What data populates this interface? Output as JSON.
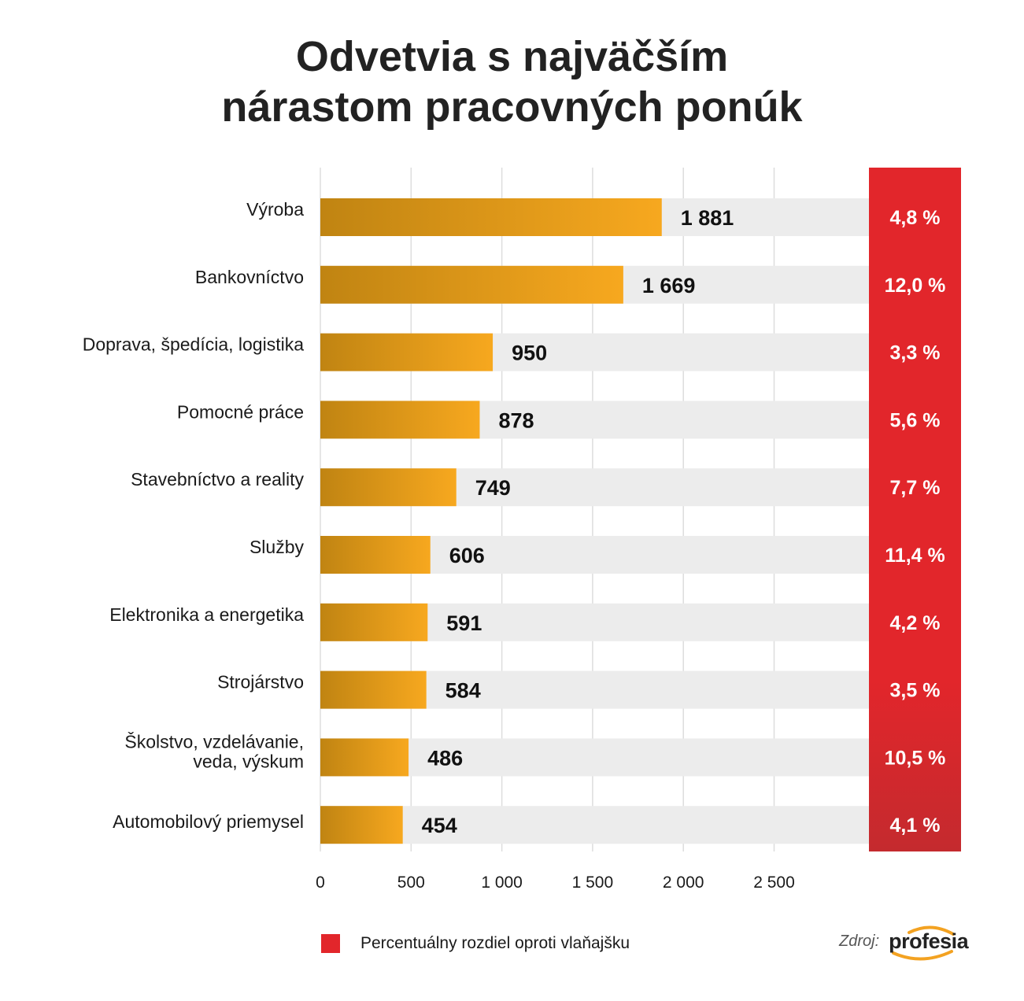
{
  "title_line1": "Odvetvia s najväčším",
  "title_line2": "nárastom pracovných ponúk",
  "chart_data": {
    "type": "bar",
    "orientation": "horizontal",
    "title": "Odvetvia s najväčším nárastom pracovných ponúk",
    "categories": [
      "Výroba",
      "Bankovníctvo",
      "Doprava, špedícia, logistika",
      "Pomocné práce",
      "Stavebníctvo a reality",
      "Služby",
      "Elektronika a energetika",
      "Strojárstvo",
      "Školstvo, vzdelávanie, veda, výskum",
      "Automobilový priemysel"
    ],
    "category_lines": [
      [
        "Výroba"
      ],
      [
        "Bankovníctvo"
      ],
      [
        "Doprava, špedícia, logistika"
      ],
      [
        "Pomocné práce"
      ],
      [
        "Stavebníctvo a reality"
      ],
      [
        "Služby"
      ],
      [
        "Elektronika a energetika"
      ],
      [
        "Strojárstvo"
      ],
      [
        "Školstvo, vzdelávanie,",
        "veda, výskum"
      ],
      [
        "Automobilový priemysel"
      ]
    ],
    "values": [
      1881,
      1669,
      950,
      878,
      749,
      606,
      591,
      584,
      486,
      454
    ],
    "value_labels": [
      "1 881",
      "1 669",
      "950",
      "878",
      "749",
      "606",
      "591",
      "584",
      "486",
      "454"
    ],
    "percent_change": [
      4.8,
      12.0,
      3.3,
      5.6,
      7.7,
      11.4,
      4.2,
      3.5,
      10.5,
      4.1
    ],
    "percent_labels": [
      "4,8 %",
      "12,0 %",
      "3,3 %",
      "5,6 %",
      "7,7 %",
      "11,4 %",
      "4,2 %",
      "3,5 %",
      "10,5 %",
      "4,1 %"
    ],
    "xlim": [
      0,
      3000
    ],
    "xticks": [
      0,
      500,
      1000,
      1500,
      2000,
      2500
    ],
    "xtick_labels": [
      "0",
      "500",
      "1 000",
      "1 500",
      "2 000",
      "2 500"
    ],
    "grid": true,
    "colors": {
      "bar_dark": "#c08412",
      "bar_light": "#f7a81f",
      "track": "#ececec",
      "gridline": "#dddddd",
      "percent_panel_top": "#e2262b",
      "percent_panel_bottom": "#c42a2e"
    }
  },
  "legend": {
    "label": "Percentuálny rozdiel oproti vlaňajšku",
    "color": "#e2262b"
  },
  "source": {
    "label": "Zdroj:",
    "logo_text": "profesia",
    "logo_accent": "#f3a221"
  }
}
